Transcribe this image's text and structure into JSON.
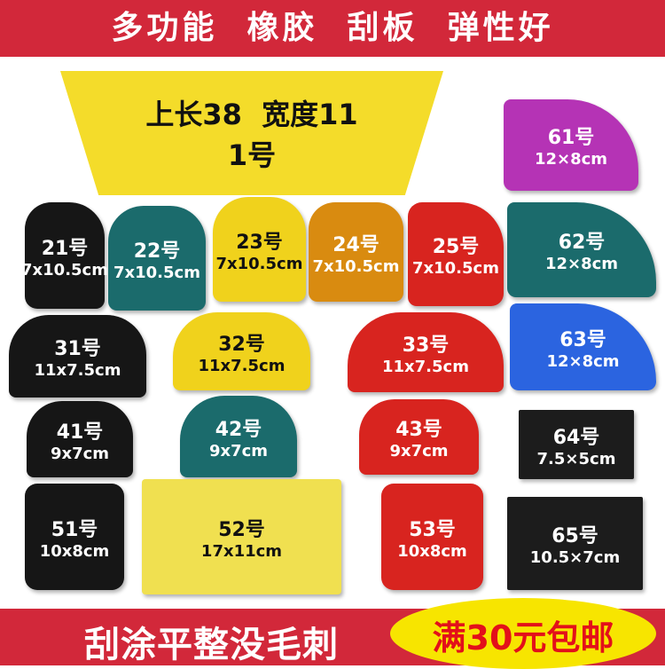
{
  "top_banner": "多功能  橡胶  刮板  弹性好",
  "bottom_banner": {
    "left": "刮涂平整没毛刺",
    "promo": "满30元包邮"
  },
  "colors": {
    "banner": "#d2283a",
    "promo_bg": "#f7e500",
    "promo_text": "#e3101a"
  },
  "main": {
    "line1": "上长38  宽度11",
    "line2": "1号"
  },
  "items": [
    {
      "n": "21号",
      "s": "7x10.5cm",
      "c": "#161616"
    },
    {
      "n": "22号",
      "s": "7x10.5cm",
      "c": "#1b6b6c"
    },
    {
      "n": "23号",
      "s": "7x10.5cm",
      "c": "#f0d21c"
    },
    {
      "n": "24号",
      "s": "7x10.5cm",
      "c": "#d98b10"
    },
    {
      "n": "25号",
      "s": "7x10.5cm",
      "c": "#d8241f"
    },
    {
      "n": "31号",
      "s": "11x7.5cm",
      "c": "#161616"
    },
    {
      "n": "32号",
      "s": "11x7.5cm",
      "c": "#f0d21c"
    },
    {
      "n": "33号",
      "s": "11x7.5cm",
      "c": "#d8241f"
    },
    {
      "n": "41号",
      "s": "9x7cm",
      "c": "#161616"
    },
    {
      "n": "42号",
      "s": "9x7cm",
      "c": "#1b6b6c"
    },
    {
      "n": "43号",
      "s": "9x7cm",
      "c": "#d8241f"
    },
    {
      "n": "51号",
      "s": "10x8cm",
      "c": "#161616"
    },
    {
      "n": "52号",
      "s": "17x11cm",
      "c": "#f0e050"
    },
    {
      "n": "53号",
      "s": "10x8cm",
      "c": "#d8241f"
    },
    {
      "n": "61号",
      "s": "12×8cm",
      "c": "#b533b5"
    },
    {
      "n": "62号",
      "s": "12×8cm",
      "c": "#1b6b6c"
    },
    {
      "n": "63号",
      "s": "12×8cm",
      "c": "#2b64e0"
    },
    {
      "n": "64号",
      "s": "7.5×5cm",
      "c": "#1c1c1c"
    },
    {
      "n": "65号",
      "s": "10.5×7cm",
      "c": "#1c1c1c"
    }
  ]
}
